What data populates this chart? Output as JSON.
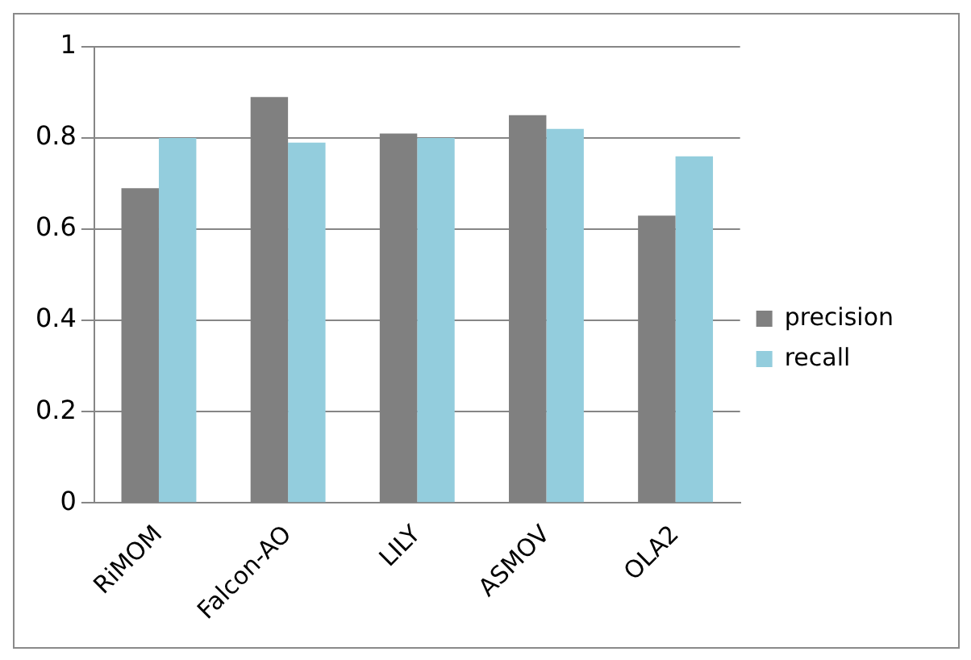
{
  "chart_data": {
    "type": "bar",
    "categories": [
      "RiMOM",
      "Falcon-AO",
      "LILY",
      "ASMOV",
      "OLA2"
    ],
    "series": [
      {
        "name": "precision",
        "color": "#808080",
        "values": [
          0.69,
          0.89,
          0.81,
          0.85,
          0.63
        ]
      },
      {
        "name": "recall",
        "color": "#93cddd",
        "values": [
          0.8,
          0.79,
          0.8,
          0.82,
          0.76
        ]
      }
    ],
    "ylim": [
      0,
      1
    ],
    "yticks": [
      0,
      0.2,
      0.4,
      0.6,
      0.8,
      1
    ],
    "grid": "y",
    "legend": "right"
  }
}
